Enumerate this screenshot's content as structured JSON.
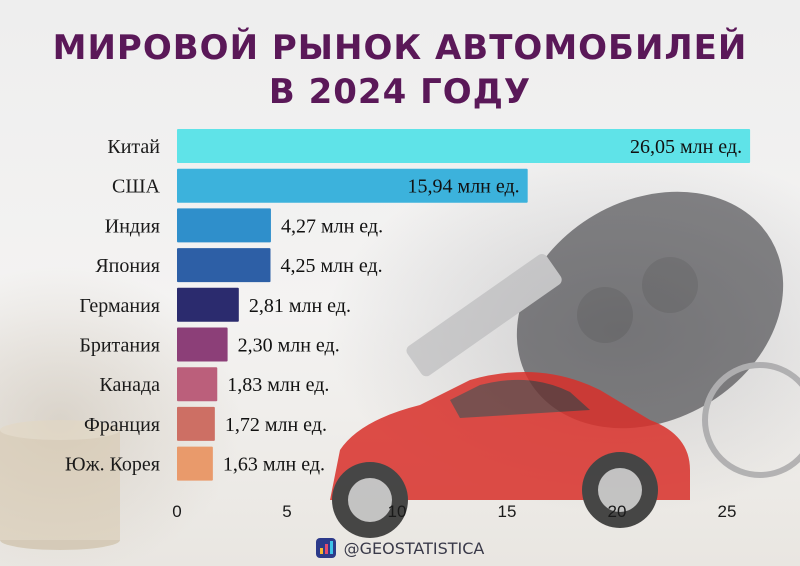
{
  "title_lines": [
    "МИРОВОЙ РЫНОК АВТОМОБИЛЕЙ",
    "В 2024 ГОДУ"
  ],
  "footer": {
    "handle": "@GEOSTATISTICA",
    "icon": "chart-logo-icon"
  },
  "chart_data": {
    "type": "bar",
    "orientation": "horizontal",
    "categories": [
      "Китай",
      "США",
      "Индия",
      "Япония",
      "Германия",
      "Британия",
      "Канада",
      "Франция",
      "Юж. Корея"
    ],
    "values": [
      26.05,
      15.94,
      4.27,
      4.25,
      2.81,
      2.3,
      1.83,
      1.72,
      1.63
    ],
    "data_labels": [
      "26,05 млн ед.",
      "15,94 млн ед.",
      "4,27 млн ед.",
      "4,25 млн ед.",
      "2,81 млн ед.",
      "2,30 млн ед.",
      "1,83 млн ед.",
      "1,72 млн ед.",
      "1,63 млн ед."
    ],
    "bar_colors": [
      "#5fe3e8",
      "#3cb2dc",
      "#2f8fcb",
      "#2d5fa6",
      "#2b2b6e",
      "#8c3f78",
      "#bb5f7b",
      "#cd6f64",
      "#e99a6b"
    ],
    "xlim": [
      0,
      26
    ],
    "xticks": [
      0,
      5,
      10,
      15,
      20,
      25
    ],
    "grid": false,
    "legend": "none"
  }
}
